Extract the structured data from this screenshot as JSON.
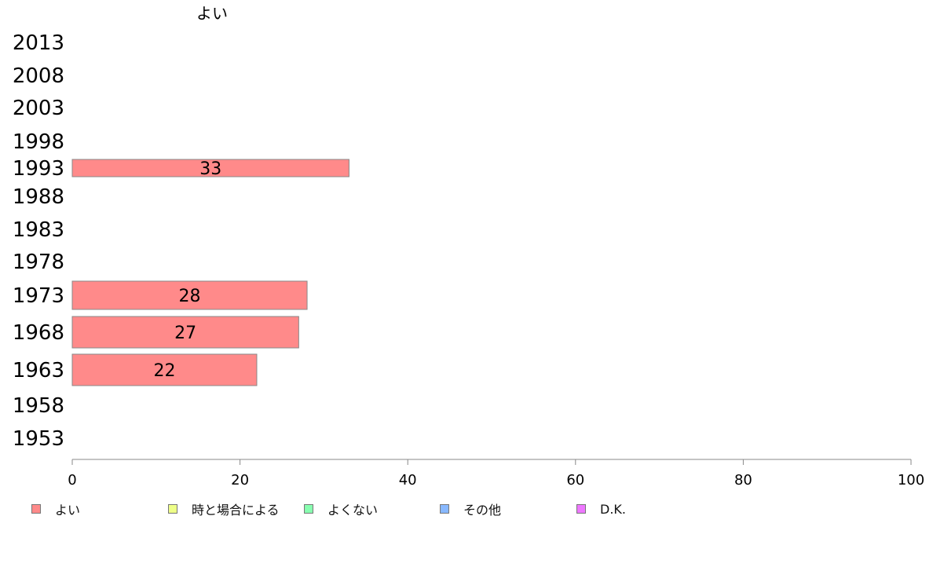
{
  "chart_data": {
    "type": "bar",
    "orientation": "horizontal",
    "title": "よい",
    "categories": [
      "2013",
      "2008",
      "2003",
      "1998",
      "1993",
      "1988",
      "1983",
      "1978",
      "1973",
      "1968",
      "1963",
      "1958",
      "1953"
    ],
    "series": [
      {
        "name": "よい",
        "color": "#ff8a8a",
        "values": [
          null,
          null,
          null,
          null,
          33,
          null,
          null,
          null,
          28,
          27,
          22,
          null,
          null
        ],
        "labels": [
          "",
          "",
          "",
          "",
          "33",
          "",
          "",
          "",
          "28",
          "27",
          "22",
          "",
          ""
        ]
      }
    ],
    "xlim": [
      0,
      100
    ],
    "xticks": [
      "0",
      "20",
      "40",
      "60",
      "80",
      "100"
    ],
    "grid": false,
    "legend_position": "bottom"
  },
  "legend": [
    {
      "label": "よい",
      "color": "#ff8a8a"
    },
    {
      "label": "時と場合による",
      "color": "#eeff88"
    },
    {
      "label": "よくない",
      "color": "#88ffb0"
    },
    {
      "label": "その他",
      "color": "#88b8ff"
    },
    {
      "label": "D.K.",
      "color": "#ee77ff"
    }
  ]
}
